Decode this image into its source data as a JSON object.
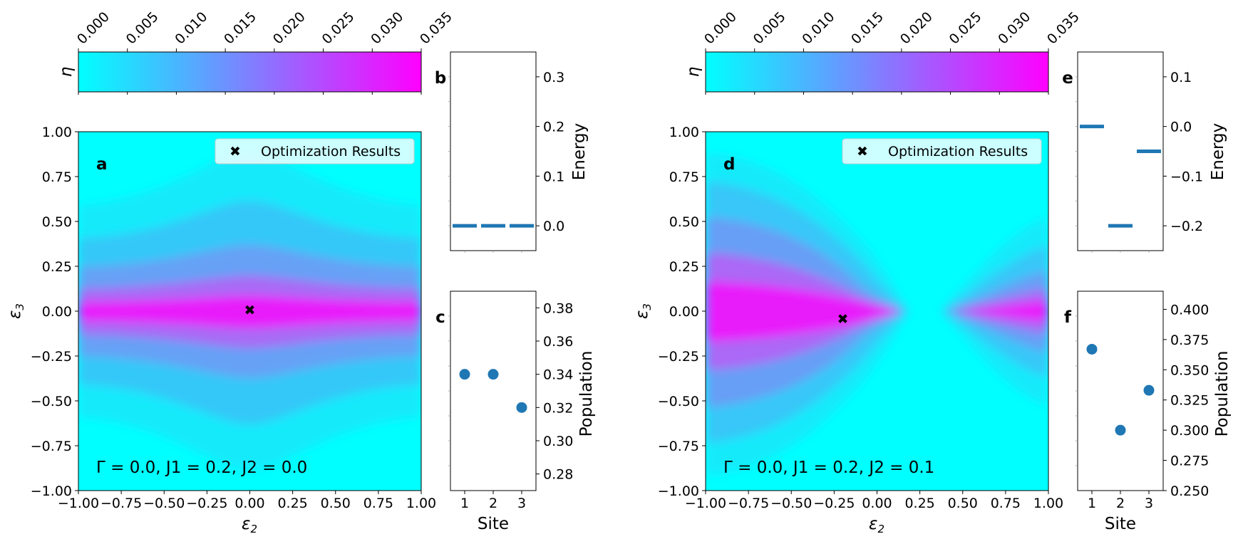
{
  "chart_data": [
    {
      "type": "heatmap",
      "panel_label": "a",
      "xlabel": "ε",
      "xlabel_sub": "2",
      "ylabel": "ε",
      "ylabel_sub": "3",
      "xlim": [
        -1.0,
        1.0
      ],
      "ylim": [
        -1.0,
        1.0
      ],
      "xticks": [
        "−1.00",
        "−0.75",
        "−0.50",
        "−0.25",
        "0.00",
        "0.25",
        "0.50",
        "0.75",
        "1.00"
      ],
      "yticks": [
        "1.00",
        "0.75",
        "0.50",
        "0.25",
        "0.00",
        "−0.25",
        "−0.50",
        "−0.75",
        "−1.00"
      ],
      "legend": "Optimization Results",
      "optimum": {
        "x": 0.0,
        "y": 0.0
      },
      "annotation": "Γ = 0.0, J1 = 0.2, J2 = 0.0",
      "colorbar": {
        "label": "η",
        "range": [
          0.0,
          0.035
        ],
        "ticks": [
          "0.000",
          "0.005",
          "0.010",
          "0.015",
          "0.020",
          "0.025",
          "0.030",
          "0.035"
        ],
        "colors": [
          "#00ffff",
          "#ff00ff"
        ]
      }
    },
    {
      "type": "bar",
      "panel_label": "b",
      "ylabel": "Energy",
      "ylim": [
        -0.05,
        0.35
      ],
      "yticks": [
        "0.3",
        "0.2",
        "0.1",
        "0.0"
      ],
      "sites": [
        1,
        2,
        3
      ],
      "values": [
        0.0,
        0.0,
        0.0
      ]
    },
    {
      "type": "scatter",
      "panel_label": "c",
      "xlabel": "Site",
      "ylabel": "Population",
      "xticks": [
        "1",
        "2",
        "3"
      ],
      "ylim": [
        0.27,
        0.39
      ],
      "yticks": [
        "0.38",
        "0.36",
        "0.34",
        "0.32",
        "0.30",
        "0.28"
      ],
      "x": [
        1,
        2,
        3
      ],
      "y": [
        0.34,
        0.34,
        0.32
      ]
    },
    {
      "type": "heatmap",
      "panel_label": "d",
      "xlabel": "ε",
      "xlabel_sub": "2",
      "ylabel": "ε",
      "ylabel_sub": "3",
      "xlim": [
        -1.0,
        1.0
      ],
      "ylim": [
        -1.0,
        1.0
      ],
      "xticks": [
        "−1.00",
        "−0.75",
        "−0.50",
        "−0.25",
        "0.00",
        "0.25",
        "0.50",
        "0.75",
        "1.00"
      ],
      "yticks": [
        "1.00",
        "0.75",
        "0.50",
        "0.25",
        "0.00",
        "−0.25",
        "−0.50",
        "−0.75",
        "−1.00"
      ],
      "legend": "Optimization Results",
      "optimum": {
        "x": -0.2,
        "y": -0.05
      },
      "annotation": "Γ = 0.0, J1 = 0.2, J2 = 0.1",
      "colorbar": {
        "label": "η",
        "range": [
          0.0,
          0.035
        ],
        "ticks": [
          "0.000",
          "0.005",
          "0.010",
          "0.015",
          "0.020",
          "0.025",
          "0.030",
          "0.035"
        ],
        "colors": [
          "#00ffff",
          "#ff00ff"
        ]
      }
    },
    {
      "type": "bar",
      "panel_label": "e",
      "ylabel": "Energy",
      "ylim": [
        -0.25,
        0.15
      ],
      "yticks": [
        "0.1",
        "0.0",
        "−0.1",
        "−0.2"
      ],
      "sites": [
        1,
        2,
        3
      ],
      "values": [
        0.0,
        -0.2,
        -0.05
      ]
    },
    {
      "type": "scatter",
      "panel_label": "f",
      "xlabel": "Site",
      "ylabel": "Population",
      "xticks": [
        "1",
        "2",
        "3"
      ],
      "ylim": [
        0.25,
        0.415
      ],
      "yticks": [
        "0.400",
        "0.375",
        "0.350",
        "0.325",
        "0.300",
        "0.275",
        "0.250"
      ],
      "x": [
        1,
        2,
        3
      ],
      "y": [
        0.367,
        0.3,
        0.333
      ]
    }
  ]
}
